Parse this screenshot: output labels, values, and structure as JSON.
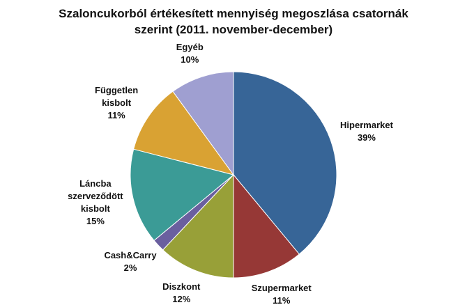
{
  "chart_data": {
    "type": "pie",
    "title": "Szaloncukorból értékesített mennyiség megoszlása csatornák szerint (2011. november-december)",
    "categories": [
      "Hipermarket",
      "Szupermarket",
      "Diszkont",
      "Cash&Carry",
      "Láncba szerveződött kisbolt",
      "Független kisbolt",
      "Egyéb"
    ],
    "values": [
      39,
      11,
      12,
      2,
      15,
      11,
      10
    ],
    "value_labels": [
      "39%",
      "11%",
      "12%",
      "2%",
      "15%",
      "11%",
      "10%"
    ],
    "colors": [
      "#376597",
      "#963836",
      "#98a038",
      "#6a5f9f",
      "#3b9b96",
      "#d9a233",
      "#9f9fd1"
    ]
  }
}
